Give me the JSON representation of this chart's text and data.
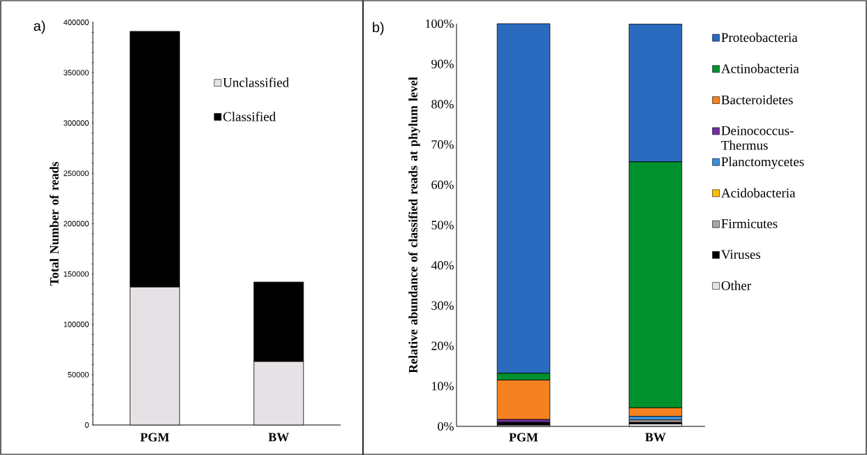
{
  "chart_data": [
    {
      "type": "bar",
      "title": "a)",
      "ylabel": "Total Number of reads",
      "stacked": true,
      "legend": "top right",
      "categories": [
        "PGM",
        "BW"
      ],
      "series": [
        {
          "name": "Unclassified",
          "color": "#e6e1e4",
          "values": [
            137000,
            63000
          ]
        },
        {
          "name": "Classified",
          "color": "#000000",
          "values": [
            254000,
            79000
          ]
        }
      ],
      "ylim": [
        0,
        400000
      ],
      "yticks": [
        0,
        {
          "value": 10000,
          "label": null
        },
        {
          "value": 20000,
          "label": null
        },
        {
          "value": 30000,
          "label": null
        },
        {
          "value": 40000,
          "label": null
        },
        50000,
        {
          "value": 60000,
          "label": null
        },
        {
          "value": 70000,
          "label": null
        },
        {
          "value": 80000,
          "label": null
        },
        {
          "value": 90000,
          "label": null
        },
        100000,
        {
          "value": 110000,
          "label": null
        },
        {
          "value": 120000,
          "label": null
        },
        {
          "value": 130000,
          "label": null
        },
        {
          "value": 140000,
          "label": null
        },
        150000,
        {
          "value": 160000,
          "label": null
        },
        {
          "value": 170000,
          "label": null
        },
        {
          "value": 180000,
          "label": null
        },
        {
          "value": 190000,
          "label": null
        },
        200000,
        {
          "value": 210000,
          "label": null
        },
        {
          "value": 220000,
          "label": null
        },
        {
          "value": 230000,
          "label": null
        },
        {
          "value": 240000,
          "label": null
        },
        250000,
        {
          "value": 260000,
          "label": null
        },
        {
          "value": 270000,
          "label": null
        },
        {
          "value": 280000,
          "label": null
        },
        {
          "value": 290000,
          "label": null
        },
        300000,
        {
          "value": 310000,
          "label": null
        },
        {
          "value": 320000,
          "label": null
        },
        {
          "value": 330000,
          "label": null
        },
        {
          "value": 340000,
          "label": null
        },
        350000,
        {
          "value": 360000,
          "label": null
        },
        {
          "value": 370000,
          "label": null
        },
        {
          "value": 380000,
          "label": null
        },
        {
          "value": 390000,
          "label": null
        },
        400000
      ]
    },
    {
      "type": "bar",
      "title": "b)",
      "ylabel": "Relative abundance of classified reads at phylum level",
      "stacked": true,
      "legend": "right",
      "categories": [
        "PGM",
        "BW"
      ],
      "series": [
        {
          "name": "Other",
          "color": "#e8e4e6",
          "values": [
            0.3,
            0.6
          ]
        },
        {
          "name": "Viruses",
          "color": "#000000",
          "values": [
            0.7,
            0.4
          ]
        },
        {
          "name": "Firmicutes",
          "color": "#a6a6a6",
          "values": [
            0,
            0.6
          ]
        },
        {
          "name": "Acidobacteria",
          "color": "#ffc000",
          "values": [
            0,
            null
          ]
        },
        {
          "name": "Planctomycetes",
          "color": "#3d8fd6",
          "values": [
            0,
            0.9
          ]
        },
        {
          "name": "Deinococcus-Thermus",
          "color": "#7030a0",
          "values": [
            0.7,
            0
          ]
        },
        {
          "name": "Bacteroidetes",
          "color": "#f58220",
          "values": [
            9.8,
            2.1
          ]
        },
        {
          "name": "Actinobacteria",
          "color": "#00912e",
          "values": [
            1.7,
            61.1
          ]
        },
        {
          "name": "Proteobacteria",
          "color": "#2a6bc0",
          "values": [
            86.8,
            34.2
          ]
        }
      ],
      "ylim": [
        0,
        100
      ],
      "yticks": [
        {
          "value": 0,
          "label": "0%"
        },
        {
          "value": 10,
          "label": "10%"
        },
        {
          "value": 20,
          "label": "20%"
        },
        {
          "value": 30,
          "label": "30%"
        },
        {
          "value": 40,
          "label": "40%"
        },
        {
          "value": 50,
          "label": "50%"
        },
        {
          "value": 60,
          "label": "60%"
        },
        {
          "value": 70,
          "label": "70%"
        },
        {
          "value": 80,
          "label": "80%"
        },
        {
          "value": 90,
          "label": "90%"
        },
        {
          "value": 100,
          "label": "100%"
        }
      ]
    }
  ]
}
